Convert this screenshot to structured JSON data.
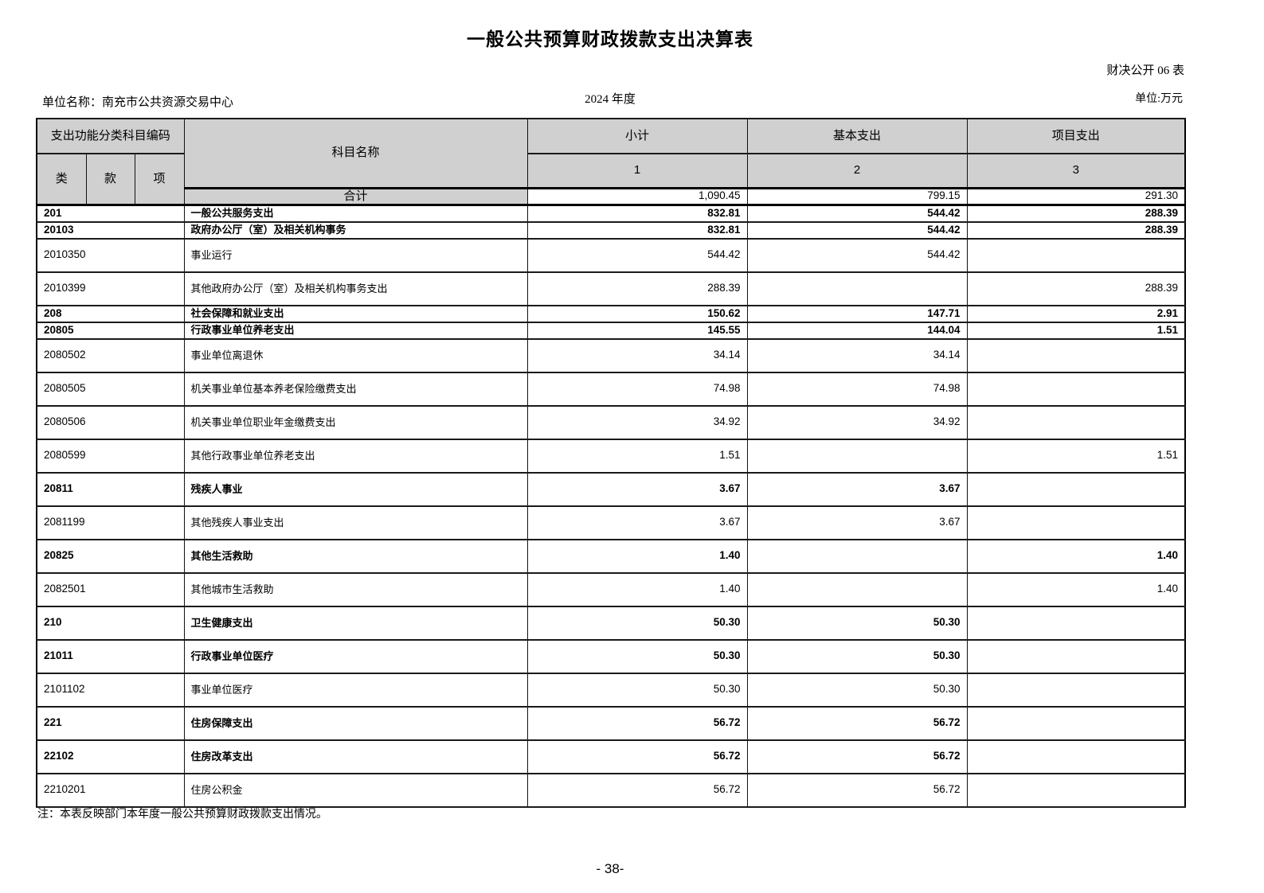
{
  "page": {
    "title": "一般公共预算财政拨款支出决算表",
    "form_code": "财决公开 06 表",
    "unit_name": "单位名称：南充市公共资源交易中心",
    "year": "2024 年度",
    "unit_label": "单位:万元",
    "note": "注：本表反映部门本年度一般公共预算财政拨款支出情况。",
    "page_number": "- 38-"
  },
  "colors": {
    "header_bg": "#d0d0d0"
  },
  "table": {
    "header": {
      "code_group": "支出功能分类科目编码",
      "col_category": "类",
      "col_item": "款",
      "col_subitem": "项",
      "subject_name": "科目名称",
      "subtotal": "小计",
      "basic": "基本支出",
      "project": "项目支出",
      "num1": "1",
      "num2": "2",
      "num3": "3"
    },
    "total_row": {
      "label": "合计",
      "subtotal": "1,090.45",
      "basic": "799.15",
      "project": "291.30"
    },
    "rows": [
      {
        "code": "201",
        "name": "一般公共服务支出",
        "subtotal": "832.81",
        "basic": "544.42",
        "project": "288.39",
        "bold": true,
        "h": "short"
      },
      {
        "code": "20103",
        "name": "政府办公厅（室）及相关机构事务",
        "subtotal": "832.81",
        "basic": "544.42",
        "project": "288.39",
        "bold": true,
        "h": "short"
      },
      {
        "code": "2010350",
        "name": "事业运行",
        "subtotal": "544.42",
        "basic": "544.42",
        "project": "",
        "bold": false,
        "h": "tall"
      },
      {
        "code": "2010399",
        "name": "其他政府办公厅（室）及相关机构事务支出",
        "subtotal": "288.39",
        "basic": "",
        "project": "288.39",
        "bold": false,
        "h": "tall"
      },
      {
        "code": "208",
        "name": "社会保障和就业支出",
        "subtotal": "150.62",
        "basic": "147.71",
        "project": "2.91",
        "bold": true,
        "h": "short"
      },
      {
        "code": "20805",
        "name": "行政事业单位养老支出",
        "subtotal": "145.55",
        "basic": "144.04",
        "project": "1.51",
        "bold": true,
        "h": "short"
      },
      {
        "code": "2080502",
        "name": "事业单位离退休",
        "subtotal": "34.14",
        "basic": "34.14",
        "project": "",
        "bold": false,
        "h": "tall"
      },
      {
        "code": "2080505",
        "name": "机关事业单位基本养老保险缴费支出",
        "subtotal": "74.98",
        "basic": "74.98",
        "project": "",
        "bold": false,
        "h": "tall"
      },
      {
        "code": "2080506",
        "name": "机关事业单位职业年金缴费支出",
        "subtotal": "34.92",
        "basic": "34.92",
        "project": "",
        "bold": false,
        "h": "tall"
      },
      {
        "code": "2080599",
        "name": "其他行政事业单位养老支出",
        "subtotal": "1.51",
        "basic": "",
        "project": "1.51",
        "bold": false,
        "h": "tall"
      },
      {
        "code": "20811",
        "name": "残疾人事业",
        "subtotal": "3.67",
        "basic": "3.67",
        "project": "",
        "bold": true,
        "h": "tall"
      },
      {
        "code": "2081199",
        "name": "其他残疾人事业支出",
        "subtotal": "3.67",
        "basic": "3.67",
        "project": "",
        "bold": false,
        "h": "tall"
      },
      {
        "code": "20825",
        "name": "其他生活救助",
        "subtotal": "1.40",
        "basic": "",
        "project": "1.40",
        "bold": true,
        "h": "tall"
      },
      {
        "code": "2082501",
        "name": "其他城市生活救助",
        "subtotal": "1.40",
        "basic": "",
        "project": "1.40",
        "bold": false,
        "h": "tall"
      },
      {
        "code": "210",
        "name": "卫生健康支出",
        "subtotal": "50.30",
        "basic": "50.30",
        "project": "",
        "bold": true,
        "h": "tall"
      },
      {
        "code": "21011",
        "name": "行政事业单位医疗",
        "subtotal": "50.30",
        "basic": "50.30",
        "project": "",
        "bold": true,
        "h": "tall"
      },
      {
        "code": "2101102",
        "name": "事业单位医疗",
        "subtotal": "50.30",
        "basic": "50.30",
        "project": "",
        "bold": false,
        "h": "tall"
      },
      {
        "code": "221",
        "name": "住房保障支出",
        "subtotal": "56.72",
        "basic": "56.72",
        "project": "",
        "bold": true,
        "h": "tall"
      },
      {
        "code": "22102",
        "name": "住房改革支出",
        "subtotal": "56.72",
        "basic": "56.72",
        "project": "",
        "bold": true,
        "h": "tall"
      },
      {
        "code": "2210201",
        "name": "住房公积金",
        "subtotal": "56.72",
        "basic": "56.72",
        "project": "",
        "bold": false,
        "h": "tall"
      }
    ]
  }
}
